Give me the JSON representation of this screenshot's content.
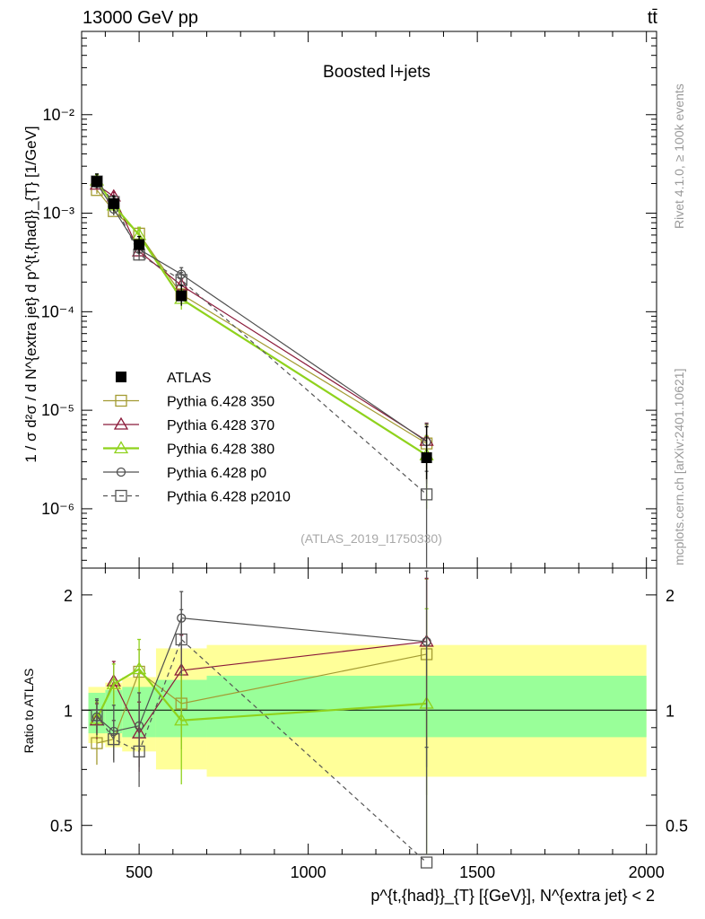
{
  "header": {
    "left": "13000 GeV pp",
    "right": "tt̄"
  },
  "side": {
    "rivet": "Rivet 4.1.0, ≥ 100k events",
    "mcplots": "mcplots.cern.ch [arXiv:2401.10621]"
  },
  "chart_data": [
    {
      "type": "line",
      "title": "Boosted l+jets",
      "watermark": "(ATLAS_2019_I1750330)",
      "ylabel": "1 / σ d²σ / d N^{extra jet} d p^{t,{had}}_{T} [1/GeV]",
      "yscale": "log",
      "ylim": [
        2.5e-07,
        0.07
      ],
      "yticks": [
        1e-06,
        1e-05,
        0.0001,
        0.001,
        0.01
      ],
      "ytick_labels": [
        "10⁻⁶",
        "10⁻⁵",
        "10⁻⁴",
        "10⁻³",
        "10⁻²"
      ],
      "xlim": [
        330,
        2030
      ],
      "x": [
        375,
        425,
        500,
        625,
        1350
      ],
      "legend_position": "center-left",
      "series": [
        {
          "name": "ATLAS",
          "color": "#000000",
          "marker": "filled-square",
          "values": [
            0.0021,
            0.00125,
            0.00048,
            0.000145,
            3.3e-06
          ],
          "err_low": [
            0.0003,
            0.0002,
            9e-05,
            3e-05,
            1.3e-06
          ],
          "err_high": [
            0.0004,
            0.00025,
            0.0001,
            4e-05,
            3.5e-06
          ]
        },
        {
          "name": "Pythia 6.428 350",
          "color": "#a39b32",
          "marker": "open-square",
          "dash": "solid",
          "values": [
            0.00172,
            0.00105,
            0.00062,
            0.00015,
            4.6e-06
          ],
          "err_low": [
            0.00015,
            0.0001,
            6e-05,
            2e-05,
            3e-06
          ],
          "err_high": [
            0.00015,
            0.0001,
            6e-05,
            2e-05,
            2.5e-06
          ]
        },
        {
          "name": "Pythia 6.428 370",
          "color": "#8b1a3a",
          "marker": "open-triangle",
          "dash": "solid",
          "values": [
            0.00195,
            0.00148,
            0.00041,
            0.000185,
            4.9e-06
          ],
          "err_low": [
            0.0002,
            0.00015,
            5e-05,
            3e-05,
            3e-06
          ],
          "err_high": [
            0.0002,
            0.00015,
            5e-05,
            3e-05,
            2.5e-06
          ]
        },
        {
          "name": "Pythia 6.428 380",
          "color": "#8fd21c",
          "marker": "open-triangle",
          "dash": "solid",
          "values": [
            0.00215,
            0.0012,
            0.0006,
            0.000135,
            3.5e-06
          ],
          "err_low": [
            0.0003,
            0.00015,
            0.00012,
            3e-05,
            2.5e-06
          ],
          "err_high": [
            0.0003,
            0.00015,
            0.00012,
            3e-05,
            2e-06
          ]
        },
        {
          "name": "Pythia 6.428 p0",
          "color": "#505050",
          "marker": "open-circle",
          "dash": "solid",
          "values": [
            0.002,
            0.0011,
            0.00043,
            0.00024,
            4.8e-06
          ],
          "err_low": [
            0.0002,
            0.00015,
            5e-05,
            4e-05,
            3e-06
          ],
          "err_high": [
            0.0002,
            0.00015,
            5e-05,
            4e-05,
            2.5e-06
          ]
        },
        {
          "name": "Pythia 6.428 p2010",
          "color": "#555555",
          "marker": "open-square",
          "dash": "dashed",
          "values": [
            0.0021,
            0.0013,
            0.00038,
            0.00021,
            1.4e-06
          ],
          "err_low": [
            0.0002,
            0.00015,
            5e-05,
            4e-05,
            1.2e-06
          ],
          "err_high": [
            0.0002,
            0.00015,
            5e-05,
            4e-05,
            1e-06
          ]
        }
      ]
    },
    {
      "type": "line",
      "title": "",
      "ylabel": "Ratio to ATLAS",
      "xlabel": "p^{t,{had}}_{T} [{GeV}], N^{extra jet} < 2",
      "yscale": "log",
      "ylim": [
        0.42,
        2.35
      ],
      "yticks": [
        0.5,
        1,
        2
      ],
      "ytick_labels": [
        "0.5",
        "1",
        "2"
      ],
      "xlim": [
        330,
        2030
      ],
      "xticks": [
        500,
        1000,
        1500,
        2000
      ],
      "xtick_labels": [
        "500",
        "1000",
        "1500",
        "2000"
      ],
      "x": [
        375,
        425,
        500,
        625,
        1350
      ],
      "bins": [
        [
          350,
          400
        ],
        [
          400,
          450
        ],
        [
          450,
          550
        ],
        [
          550,
          700
        ],
        [
          700,
          2000
        ]
      ],
      "band_inner": [
        [
          0.87,
          1.11
        ],
        [
          0.87,
          1.13
        ],
        [
          0.85,
          1.15
        ],
        [
          0.85,
          1.2
        ],
        [
          0.85,
          1.23
        ]
      ],
      "band_outer": [
        [
          0.82,
          1.15
        ],
        [
          0.8,
          1.18
        ],
        [
          0.78,
          1.22
        ],
        [
          0.7,
          1.45
        ],
        [
          0.67,
          1.48
        ]
      ],
      "series": [
        {
          "name": "Pythia 6.428 350",
          "color": "#a39b32",
          "marker": "open-square",
          "dash": "solid",
          "values": [
            0.82,
            0.84,
            1.26,
            1.04,
            1.4
          ],
          "err": [
            0.1,
            0.1,
            0.18,
            0.25,
            0.8
          ]
        },
        {
          "name": "Pythia 6.428 370",
          "color": "#8b1a3a",
          "marker": "open-triangle",
          "dash": "solid",
          "values": [
            0.94,
            1.19,
            0.87,
            1.27,
            1.51
          ],
          "err": [
            0.1,
            0.15,
            0.18,
            0.3,
            0.7
          ]
        },
        {
          "name": "Pythia 6.428 380",
          "color": "#8fd21c",
          "marker": "open-triangle",
          "dash": "solid",
          "values": [
            0.95,
            1.17,
            1.28,
            0.94,
            1.04
          ],
          "err": [
            0.1,
            0.15,
            0.25,
            0.3,
            0.8
          ]
        },
        {
          "name": "Pythia 6.428 p0",
          "color": "#505050",
          "marker": "open-circle",
          "dash": "solid",
          "values": [
            0.96,
            0.88,
            0.91,
            1.74,
            1.51
          ],
          "err": [
            0.1,
            0.15,
            0.2,
            0.3,
            0.8
          ]
        },
        {
          "name": "Pythia 6.428 p2010",
          "color": "#555555",
          "marker": "open-square",
          "dash": "dashed",
          "values": [
            0.97,
            0.84,
            0.78,
            1.53,
            0.4
          ],
          "err": [
            0.1,
            0.1,
            0.15,
            0.3,
            0.4
          ]
        }
      ]
    }
  ]
}
